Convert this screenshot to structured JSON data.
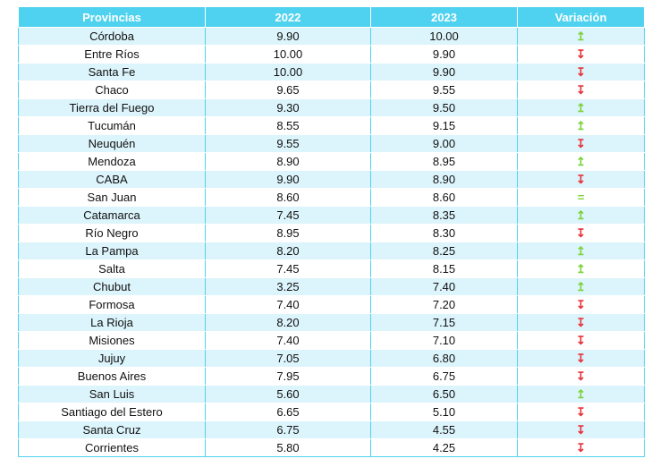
{
  "columns": [
    "Provincias",
    "2022",
    "2023",
    "Variación"
  ],
  "colors": {
    "header_bg": "#4fd2ef",
    "row_stripe": "#dcf4fb",
    "up": "#7cd33b",
    "down": "#e8323a",
    "equal": "#7cd33b"
  },
  "rows": [
    {
      "province": "Córdoba",
      "y2022": "9.90",
      "y2023": "10.00",
      "variation": "up"
    },
    {
      "province": "Entre Ríos",
      "y2022": "10.00",
      "y2023": "9.90",
      "variation": "down"
    },
    {
      "province": "Santa Fe",
      "y2022": "10.00",
      "y2023": "9.90",
      "variation": "down"
    },
    {
      "province": "Chaco",
      "y2022": "9.65",
      "y2023": "9.55",
      "variation": "down"
    },
    {
      "province": "Tierra del Fuego",
      "y2022": "9.30",
      "y2023": "9.50",
      "variation": "up"
    },
    {
      "province": "Tucumán",
      "y2022": "8.55",
      "y2023": "9.15",
      "variation": "up"
    },
    {
      "province": "Neuquén",
      "y2022": "9.55",
      "y2023": "9.00",
      "variation": "down"
    },
    {
      "province": "Mendoza",
      "y2022": "8.90",
      "y2023": "8.95",
      "variation": "up"
    },
    {
      "province": "CABA",
      "y2022": "9.90",
      "y2023": "8.90",
      "variation": "down"
    },
    {
      "province": "San Juan",
      "y2022": "8.60",
      "y2023": "8.60",
      "variation": "equal"
    },
    {
      "province": "Catamarca",
      "y2022": "7.45",
      "y2023": "8.35",
      "variation": "up"
    },
    {
      "province": "Río Negro",
      "y2022": "8.95",
      "y2023": "8.30",
      "variation": "down"
    },
    {
      "province": "La Pampa",
      "y2022": "8.20",
      "y2023": "8.25",
      "variation": "up"
    },
    {
      "province": "Salta",
      "y2022": "7.45",
      "y2023": "8.15",
      "variation": "up"
    },
    {
      "province": "Chubut",
      "y2022": "3.25",
      "y2023": "7.40",
      "variation": "up"
    },
    {
      "province": "Formosa",
      "y2022": "7.40",
      "y2023": "7.20",
      "variation": "down"
    },
    {
      "province": "La Rioja",
      "y2022": "8.20",
      "y2023": "7.15",
      "variation": "down"
    },
    {
      "province": "Misiones",
      "y2022": "7.40",
      "y2023": "7.10",
      "variation": "down"
    },
    {
      "province": "Jujuy",
      "y2022": "7.05",
      "y2023": "6.80",
      "variation": "down"
    },
    {
      "province": "Buenos Aires",
      "y2022": "7.95",
      "y2023": "6.75",
      "variation": "down"
    },
    {
      "province": "San Luis",
      "y2022": "5.60",
      "y2023": "6.50",
      "variation": "up"
    },
    {
      "province": "Santiago del Estero",
      "y2022": "6.65",
      "y2023": "5.10",
      "variation": "down"
    },
    {
      "province": "Santa Cruz",
      "y2022": "6.75",
      "y2023": "4.55",
      "variation": "down"
    },
    {
      "province": "Corrientes",
      "y2022": "5.80",
      "y2023": "4.25",
      "variation": "down"
    }
  ]
}
